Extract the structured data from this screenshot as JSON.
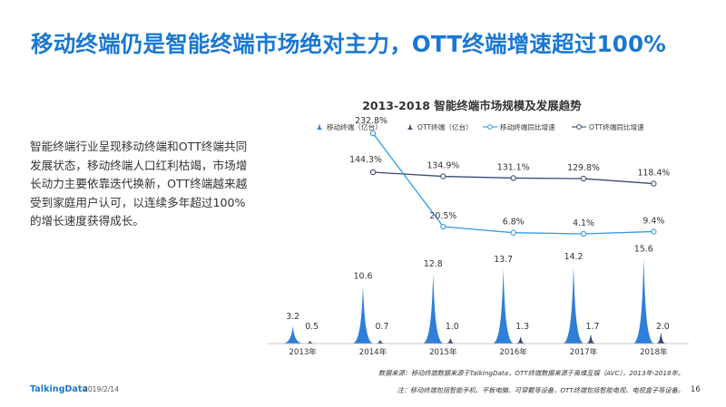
{
  "slide": {
    "headline": "移动终端仍是智能终端市场绝对主力，OTT终端增速超过100%",
    "body": "智能终端行业呈现移动终端和OTT终端共同发展状态，移动终端人口红利枯竭，市场增长动力主要依靠迭代换新，OTT终端越来越受到家庭用户认可，以连续多年超过100%的增长速度获得成长。",
    "brand": "TalkingData",
    "date": "2019/2/14",
    "source": "数据来源：移动终端数据来源于TalkingData，OTT终端数据来源于奥维互娱（AVC），2013年-2018年。",
    "note": "注：移动终端包括智能手机、平板电脑、可穿戴等设备，OTT终端包括智能电视、电视盒子等设备。",
    "page_number": "16"
  },
  "chart_data": {
    "type": "bar",
    "title": "2013-2018  智能终端市场规模及发展趋势",
    "categories": [
      "2013年",
      "2014年",
      "2015年",
      "2016年",
      "2017年",
      "2018年"
    ],
    "series": [
      {
        "name": "移动终端（亿台）",
        "type": "bar",
        "values": [
          3.2,
          10.6,
          12.8,
          13.7,
          14.2,
          15.6
        ],
        "color": "#2f7fd8"
      },
      {
        "name": "OTT终端（亿台）",
        "type": "bar",
        "values": [
          0.5,
          0.7,
          1.0,
          1.3,
          1.7,
          2.0
        ],
        "color": "#3d4a78"
      },
      {
        "name": "移动终端同比增速",
        "type": "line",
        "values": [
          null,
          232.8,
          20.5,
          6.8,
          4.1,
          9.4
        ],
        "labels": [
          "",
          "232.8%",
          "20.5%",
          "6.8%",
          "4.1%",
          "9.4%"
        ],
        "color": "#2f9be8"
      },
      {
        "name": "OTT终端同比增速",
        "type": "line",
        "values": [
          null,
          144.3,
          134.9,
          131.1,
          129.8,
          118.4
        ],
        "labels": [
          "",
          "144.3%",
          "134.9%",
          "131.1%",
          "129.8%",
          "118.4%"
        ],
        "color": "#3d4a78"
      }
    ],
    "bar_labels": {
      "mobile": [
        "3.2",
        "10.6",
        "12.8",
        "13.7",
        "14.2",
        "15.6"
      ],
      "ott": [
        "0.5",
        "0.7",
        "1.0",
        "1.3",
        "1.7",
        "2.0"
      ]
    },
    "legend_position": "top",
    "grid": false
  }
}
